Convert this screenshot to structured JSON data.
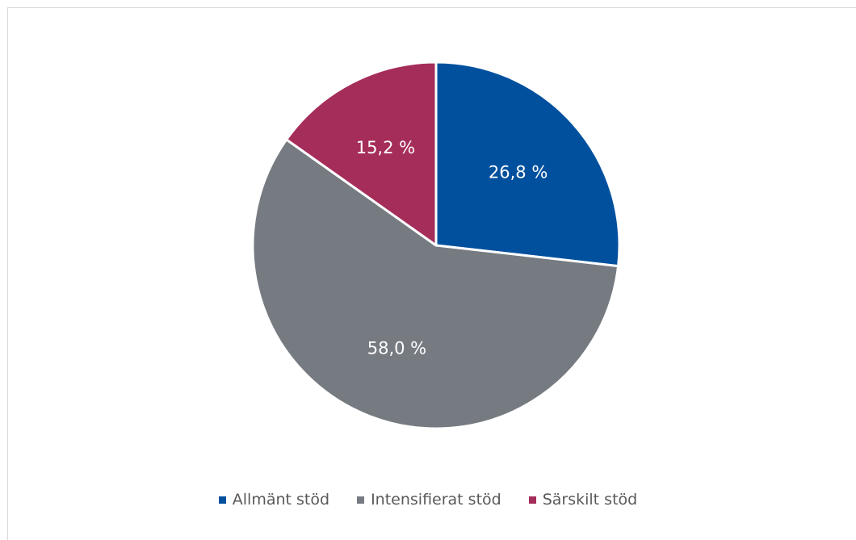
{
  "chart_data": {
    "type": "pie",
    "categories": [
      "Allmänt stöd",
      "Intensifierat stöd",
      "Särskilt stöd"
    ],
    "values": [
      26.8,
      58.0,
      15.2
    ],
    "value_labels": [
      "26,8 %",
      "58,0 %",
      "15,2 %"
    ],
    "colors": [
      "#00509e",
      "#767b82",
      "#a52d5a"
    ],
    "start_angle": "12 o'clock",
    "direction": "clockwise",
    "legend_position": "bottom"
  }
}
